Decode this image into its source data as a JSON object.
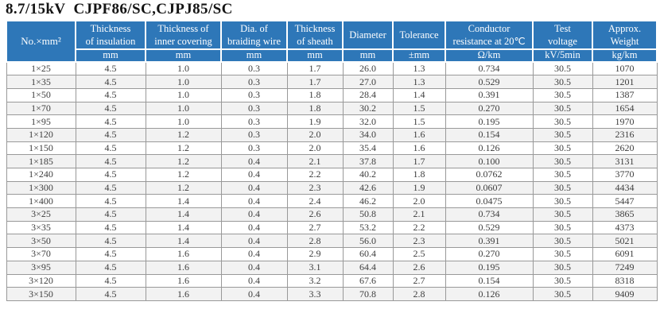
{
  "title": "8.7/15kV  CJPF86/SC,CJPJ85/SC",
  "colors": {
    "header_bg": "#2e77b8",
    "header_text": "#ffffff",
    "row_alt_bg": "#f2f2f2",
    "border": "#999999",
    "text": "#3d3d3d"
  },
  "table": {
    "first_column": {
      "label": "No.×mm²"
    },
    "columns": [
      {
        "label": "Thickness\nof insulation",
        "unit": "mm"
      },
      {
        "label": "Thickness of\ninner covering",
        "unit": "mm"
      },
      {
        "label": "Dia. of\nbraiding wire",
        "unit": "mm"
      },
      {
        "label": "Thickness\nof sheath",
        "unit": "mm"
      },
      {
        "label": "Diameter",
        "unit": "mm"
      },
      {
        "label": "Tolerance",
        "unit": "±mm"
      },
      {
        "label": "Conductor\nresistance at 20℃",
        "unit": "Ω/km"
      },
      {
        "label": "Test\nvoltage",
        "unit": "kV/5min"
      },
      {
        "label": "Approx.\nWeight",
        "unit": "kg/km"
      }
    ],
    "rows": [
      [
        "1×25",
        "4.5",
        "1.0",
        "0.3",
        "1.7",
        "26.0",
        "1.3",
        "0.734",
        "30.5",
        "1070"
      ],
      [
        "1×35",
        "4.5",
        "1.0",
        "0.3",
        "1.7",
        "27.0",
        "1.3",
        "0.529",
        "30.5",
        "1201"
      ],
      [
        "1×50",
        "4.5",
        "1.0",
        "0.3",
        "1.8",
        "28.4",
        "1.4",
        "0.391",
        "30.5",
        "1387"
      ],
      [
        "1×70",
        "4.5",
        "1.0",
        "0.3",
        "1.8",
        "30.2",
        "1.5",
        "0.270",
        "30.5",
        "1654"
      ],
      [
        "1×95",
        "4.5",
        "1.0",
        "0.3",
        "1.9",
        "32.0",
        "1.5",
        "0.195",
        "30.5",
        "1970"
      ],
      [
        "1×120",
        "4.5",
        "1.2",
        "0.3",
        "2.0",
        "34.0",
        "1.6",
        "0.154",
        "30.5",
        "2316"
      ],
      [
        "1×150",
        "4.5",
        "1.2",
        "0.3",
        "2.0",
        "35.4",
        "1.6",
        "0.126",
        "30.5",
        "2620"
      ],
      [
        "1×185",
        "4.5",
        "1.2",
        "0.4",
        "2.1",
        "37.8",
        "1.7",
        "0.100",
        "30.5",
        "3131"
      ],
      [
        "1×240",
        "4.5",
        "1.2",
        "0.4",
        "2.2",
        "40.2",
        "1.8",
        "0.0762",
        "30.5",
        "3770"
      ],
      [
        "1×300",
        "4.5",
        "1.2",
        "0.4",
        "2.3",
        "42.6",
        "1.9",
        "0.0607",
        "30.5",
        "4434"
      ],
      [
        "1×400",
        "4.5",
        "1.4",
        "0.4",
        "2.4",
        "46.2",
        "2.0",
        "0.0475",
        "30.5",
        "5447"
      ],
      [
        "3×25",
        "4.5",
        "1.4",
        "0.4",
        "2.6",
        "50.8",
        "2.1",
        "0.734",
        "30.5",
        "3865"
      ],
      [
        "3×35",
        "4.5",
        "1.4",
        "0.4",
        "2.7",
        "53.2",
        "2.2",
        "0.529",
        "30.5",
        "4373"
      ],
      [
        "3×50",
        "4.5",
        "1.4",
        "0.4",
        "2.8",
        "56.0",
        "2.3",
        "0.391",
        "30.5",
        "5021"
      ],
      [
        "3×70",
        "4.5",
        "1.6",
        "0.4",
        "2.9",
        "60.4",
        "2.5",
        "0.270",
        "30.5",
        "6091"
      ],
      [
        "3×95",
        "4.5",
        "1.6",
        "0.4",
        "3.1",
        "64.4",
        "2.6",
        "0.195",
        "30.5",
        "7249"
      ],
      [
        "3×120",
        "4.5",
        "1.6",
        "0.4",
        "3.2",
        "67.6",
        "2.7",
        "0.154",
        "30.5",
        "8318"
      ],
      [
        "3×150",
        "4.5",
        "1.6",
        "0.4",
        "3.3",
        "70.8",
        "2.8",
        "0.126",
        "30.5",
        "9409"
      ]
    ]
  }
}
